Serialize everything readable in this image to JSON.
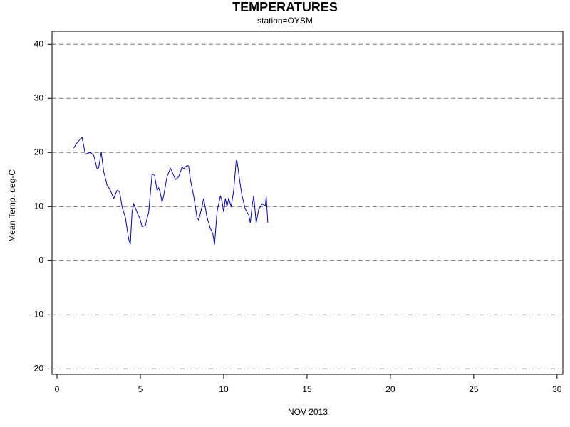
{
  "chart_data": {
    "type": "line",
    "title": "TEMPERATURES",
    "subtitle": "station=OYSM",
    "x_label": "NOV 2013",
    "y_label": "Mean Temp. deg-C",
    "x": [
      1.0,
      1.2,
      1.4,
      1.5,
      1.7,
      2.0,
      2.2,
      2.4,
      2.5,
      2.65,
      2.8,
      3.0,
      3.2,
      3.4,
      3.6,
      3.75,
      3.9,
      4.1,
      4.3,
      4.4,
      4.5,
      4.6,
      4.8,
      5.0,
      5.1,
      5.3,
      5.5,
      5.7,
      5.85,
      6.0,
      6.1,
      6.2,
      6.3,
      6.4,
      6.6,
      6.8,
      6.9,
      7.1,
      7.3,
      7.5,
      7.6,
      7.8,
      7.9,
      8.0,
      8.2,
      8.4,
      8.5,
      8.7,
      8.8,
      9.0,
      9.2,
      9.35,
      9.45,
      9.6,
      9.8,
      9.9,
      10.0,
      10.1,
      10.2,
      10.3,
      10.45,
      10.6,
      10.75,
      10.8,
      11.0,
      11.1,
      11.3,
      11.5,
      11.6,
      11.7,
      11.8,
      11.95,
      12.1,
      12.3,
      12.5,
      12.55,
      12.65
    ],
    "series": [
      {
        "name": "OYSM",
        "color": "#0000cc",
        "values": [
          20.8,
          21.8,
          22.5,
          22.8,
          19.7,
          20.0,
          19.5,
          17.0,
          17.2,
          20.1,
          16.5,
          14.0,
          13.0,
          11.5,
          13.0,
          12.8,
          10.0,
          8.0,
          4.0,
          3.0,
          9.0,
          10.5,
          9.0,
          7.5,
          6.3,
          6.5,
          9.0,
          16.0,
          15.8,
          13.0,
          13.5,
          12.5,
          10.8,
          12.0,
          15.5,
          17.1,
          16.5,
          15.0,
          15.5,
          17.3,
          17.0,
          17.6,
          17.5,
          15.0,
          12.0,
          8.0,
          7.5,
          10.0,
          11.5,
          8.0,
          6.0,
          5.0,
          3.0,
          9.0,
          12.0,
          11.0,
          9.0,
          11.5,
          10.0,
          11.5,
          10.0,
          13.0,
          18.5,
          18.4,
          14.0,
          12.0,
          9.5,
          8.5,
          7.0,
          10.0,
          12.0,
          7.0,
          9.5,
          10.5,
          10.2,
          12.0,
          7.0
        ]
      }
    ],
    "xlim": [
      -0.3,
      30.35
    ],
    "xticks": [
      0,
      5,
      10,
      15,
      20,
      25,
      30
    ],
    "ylim": [
      -21,
      42.4
    ],
    "yticks": [
      -20,
      -10,
      0,
      10,
      20,
      30,
      40
    ],
    "grid": true
  }
}
